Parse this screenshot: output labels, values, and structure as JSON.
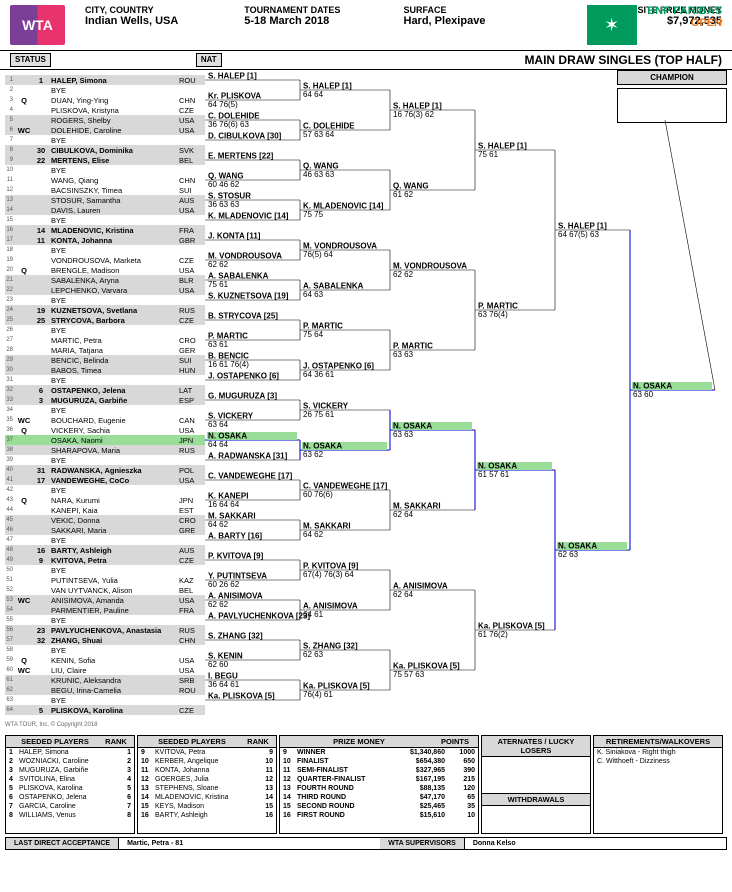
{
  "header": {
    "wta": "WTA",
    "city_label": "CITY, COUNTRY",
    "city_value": "Indian Wells, USA",
    "dates_label": "TOURNAMENT DATES",
    "dates_value": "5-18 March 2018",
    "surface_label": "SURFACE",
    "surface_value": "Hard, Plexipave",
    "prize_label": "ON-SITE PRIZE MONEY",
    "prize_value": "$7,972,535",
    "sponsor_name": "BNP PARIBAS",
    "sponsor_sub": "OPEN"
  },
  "titlebar": {
    "status": "STATUS",
    "nat": "NAT",
    "main": "MAIN DRAW SINGLES (TOP HALF)"
  },
  "champion_label": "CHAMPION",
  "r1": [
    {
      "n": 1,
      "st": "",
      "sd": "1",
      "name": "HALEP, Simona",
      "nat": "ROU",
      "gray": true
    },
    {
      "n": 2,
      "st": "",
      "sd": "",
      "name": "BYE",
      "nat": "",
      "gray": false
    },
    {
      "n": 3,
      "st": "Q",
      "sd": "",
      "name": "DUAN, Ying-Ying",
      "nat": "CHN",
      "gray": false
    },
    {
      "n": 4,
      "st": "",
      "sd": "",
      "name": "PLISKOVA, Kristyna",
      "nat": "CZE",
      "gray": false
    },
    {
      "n": 5,
      "st": "",
      "sd": "",
      "name": "ROGERS, Shelby",
      "nat": "USA",
      "gray": true
    },
    {
      "n": 6,
      "st": "WC",
      "sd": "",
      "name": "DOLEHIDE, Caroline",
      "nat": "USA",
      "gray": true
    },
    {
      "n": 7,
      "st": "",
      "sd": "",
      "name": "BYE",
      "nat": "",
      "gray": false
    },
    {
      "n": 8,
      "st": "",
      "sd": "30",
      "name": "CIBULKOVA, Dominika",
      "nat": "SVK",
      "gray": true
    },
    {
      "n": 9,
      "st": "",
      "sd": "22",
      "name": "MERTENS, Elise",
      "nat": "BEL",
      "gray": true
    },
    {
      "n": 10,
      "st": "",
      "sd": "",
      "name": "BYE",
      "nat": "",
      "gray": false
    },
    {
      "n": 11,
      "st": "",
      "sd": "",
      "name": "WANG, Qiang",
      "nat": "CHN",
      "gray": false
    },
    {
      "n": 12,
      "st": "",
      "sd": "",
      "name": "BACSINSZKY, Timea",
      "nat": "SUI",
      "gray": false
    },
    {
      "n": 13,
      "st": "",
      "sd": "",
      "name": "STOSUR, Samantha",
      "nat": "AUS",
      "gray": true
    },
    {
      "n": 14,
      "st": "",
      "sd": "",
      "name": "DAVIS, Lauren",
      "nat": "USA",
      "gray": true
    },
    {
      "n": 15,
      "st": "",
      "sd": "",
      "name": "BYE",
      "nat": "",
      "gray": false
    },
    {
      "n": 16,
      "st": "",
      "sd": "14",
      "name": "MLADENOVIC, Kristina",
      "nat": "FRA",
      "gray": true
    },
    {
      "n": 17,
      "st": "",
      "sd": "11",
      "name": "KONTA, Johanna",
      "nat": "GBR",
      "gray": true
    },
    {
      "n": 18,
      "st": "",
      "sd": "",
      "name": "BYE",
      "nat": "",
      "gray": false
    },
    {
      "n": 19,
      "st": "",
      "sd": "",
      "name": "VONDROUSOVA, Marketa",
      "nat": "CZE",
      "gray": false
    },
    {
      "n": 20,
      "st": "Q",
      "sd": "",
      "name": "BRENGLE, Madison",
      "nat": "USA",
      "gray": false
    },
    {
      "n": 21,
      "st": "",
      "sd": "",
      "name": "SABALENKA, Aryna",
      "nat": "BLR",
      "gray": true
    },
    {
      "n": 22,
      "st": "",
      "sd": "",
      "name": "LEPCHENKO, Varvara",
      "nat": "USA",
      "gray": true
    },
    {
      "n": 23,
      "st": "",
      "sd": "",
      "name": "BYE",
      "nat": "",
      "gray": false
    },
    {
      "n": 24,
      "st": "",
      "sd": "19",
      "name": "KUZNETSOVA, Svetlana",
      "nat": "RUS",
      "gray": true
    },
    {
      "n": 25,
      "st": "",
      "sd": "25",
      "name": "STRYCOVA, Barbora",
      "nat": "CZE",
      "gray": true
    },
    {
      "n": 26,
      "st": "",
      "sd": "",
      "name": "BYE",
      "nat": "",
      "gray": false
    },
    {
      "n": 27,
      "st": "",
      "sd": "",
      "name": "MARTIC, Petra",
      "nat": "CRO",
      "gray": false
    },
    {
      "n": 28,
      "st": "",
      "sd": "",
      "name": "MARIA, Tatjana",
      "nat": "GER",
      "gray": false
    },
    {
      "n": 29,
      "st": "",
      "sd": "",
      "name": "BENCIC, Belinda",
      "nat": "SUI",
      "gray": true
    },
    {
      "n": 30,
      "st": "",
      "sd": "",
      "name": "BABOS, Timea",
      "nat": "HUN",
      "gray": true
    },
    {
      "n": 31,
      "st": "",
      "sd": "",
      "name": "BYE",
      "nat": "",
      "gray": false
    },
    {
      "n": 32,
      "st": "",
      "sd": "6",
      "name": "OSTAPENKO, Jelena",
      "nat": "LAT",
      "gray": true
    },
    {
      "n": 33,
      "st": "",
      "sd": "3",
      "name": "MUGURUZA, Garbiñe",
      "nat": "ESP",
      "gray": true
    },
    {
      "n": 34,
      "st": "",
      "sd": "",
      "name": "BYE",
      "nat": "",
      "gray": false
    },
    {
      "n": 35,
      "st": "WC",
      "sd": "",
      "name": "BOUCHARD, Eugenie",
      "nat": "CAN",
      "gray": false
    },
    {
      "n": 36,
      "st": "Q",
      "sd": "",
      "name": "VICKERY, Sachia",
      "nat": "USA",
      "gray": false
    },
    {
      "n": 37,
      "st": "",
      "sd": "",
      "name": "OSAKA, Naomi",
      "nat": "JPN",
      "gray": false,
      "green": true
    },
    {
      "n": 38,
      "st": "",
      "sd": "",
      "name": "SHARAPOVA, Maria",
      "nat": "RUS",
      "gray": true
    },
    {
      "n": 39,
      "st": "",
      "sd": "",
      "name": "BYE",
      "nat": "",
      "gray": false
    },
    {
      "n": 40,
      "st": "",
      "sd": "31",
      "name": "RADWANSKA, Agnieszka",
      "nat": "POL",
      "gray": true
    },
    {
      "n": 41,
      "st": "",
      "sd": "17",
      "name": "VANDEWEGHE, CoCo",
      "nat": "USA",
      "gray": true
    },
    {
      "n": 42,
      "st": "",
      "sd": "",
      "name": "BYE",
      "nat": "",
      "gray": false
    },
    {
      "n": 43,
      "st": "Q",
      "sd": "",
      "name": "NARA, Kurumi",
      "nat": "JPN",
      "gray": false
    },
    {
      "n": 44,
      "st": "",
      "sd": "",
      "name": "KANEPI, Kaia",
      "nat": "EST",
      "gray": false
    },
    {
      "n": 45,
      "st": "",
      "sd": "",
      "name": "VEKIC, Donna",
      "nat": "CRO",
      "gray": true
    },
    {
      "n": 46,
      "st": "",
      "sd": "",
      "name": "SAKKARI, Maria",
      "nat": "GRE",
      "gray": true
    },
    {
      "n": 47,
      "st": "",
      "sd": "",
      "name": "BYE",
      "nat": "",
      "gray": false
    },
    {
      "n": 48,
      "st": "",
      "sd": "16",
      "name": "BARTY, Ashleigh",
      "nat": "AUS",
      "gray": true
    },
    {
      "n": 49,
      "st": "",
      "sd": "9",
      "name": "KVITOVA, Petra",
      "nat": "CZE",
      "gray": true
    },
    {
      "n": 50,
      "st": "",
      "sd": "",
      "name": "BYE",
      "nat": "",
      "gray": false
    },
    {
      "n": 51,
      "st": "",
      "sd": "",
      "name": "PUTINTSEVA, Yulia",
      "nat": "KAZ",
      "gray": false
    },
    {
      "n": 52,
      "st": "",
      "sd": "",
      "name": "VAN UYTVANCK, Alison",
      "nat": "BEL",
      "gray": false
    },
    {
      "n": 53,
      "st": "WC",
      "sd": "",
      "name": "ANISIMOVA, Amanda",
      "nat": "USA",
      "gray": true
    },
    {
      "n": 54,
      "st": "",
      "sd": "",
      "name": "PARMENTIER, Pauline",
      "nat": "FRA",
      "gray": true
    },
    {
      "n": 55,
      "st": "",
      "sd": "",
      "name": "BYE",
      "nat": "",
      "gray": false
    },
    {
      "n": 56,
      "st": "",
      "sd": "23",
      "name": "PAVLYUCHENKOVA, Anastasia",
      "nat": "RUS",
      "gray": true
    },
    {
      "n": 57,
      "st": "",
      "sd": "32",
      "name": "ZHANG, Shuai",
      "nat": "CHN",
      "gray": true
    },
    {
      "n": 58,
      "st": "",
      "sd": "",
      "name": "BYE",
      "nat": "",
      "gray": false
    },
    {
      "n": 59,
      "st": "Q",
      "sd": "",
      "name": "KENIN, Sofia",
      "nat": "USA",
      "gray": false
    },
    {
      "n": 60,
      "st": "WC",
      "sd": "",
      "name": "LIU, Claire",
      "nat": "USA",
      "gray": false
    },
    {
      "n": 61,
      "st": "",
      "sd": "",
      "name": "KRUNIC, Aleksandra",
      "nat": "SRB",
      "gray": true
    },
    {
      "n": 62,
      "st": "",
      "sd": "",
      "name": "BEGU, Irina-Camelia",
      "nat": "ROU",
      "gray": true
    },
    {
      "n": 63,
      "st": "",
      "sd": "",
      "name": "BYE",
      "nat": "",
      "gray": false
    },
    {
      "n": 64,
      "st": "",
      "sd": "5",
      "name": "PLISKOVA, Karolina",
      "nat": "CZE",
      "gray": true
    }
  ],
  "r2": [
    {
      "name": "S. HALEP [1]",
      "score": ""
    },
    {
      "name": "Kr. PLISKOVA",
      "score": "64 76(5)"
    },
    {
      "name": "C. DOLEHIDE",
      "score": "36 76(6) 63"
    },
    {
      "name": "D. CIBULKOVA [30]",
      "score": ""
    },
    {
      "name": "E. MERTENS [22]",
      "score": ""
    },
    {
      "name": "Q. WANG",
      "score": "60 46 62"
    },
    {
      "name": "S. STOSUR",
      "score": "36 63 63"
    },
    {
      "name": "K. MLADENOVIC [14]",
      "score": ""
    },
    {
      "name": "J. KONTA [11]",
      "score": ""
    },
    {
      "name": "M. VONDROUSOVA",
      "score": "62 62"
    },
    {
      "name": "A. SABALENKA",
      "score": "75 61"
    },
    {
      "name": "S. KUZNETSOVA [19]",
      "score": ""
    },
    {
      "name": "B. STRYCOVA [25]",
      "score": ""
    },
    {
      "name": "P. MARTIC",
      "score": "63 61"
    },
    {
      "name": "B. BENCIC",
      "score": "16 61 76(4)"
    },
    {
      "name": "J. OSTAPENKO [6]",
      "score": ""
    },
    {
      "name": "G. MUGURUZA [3]",
      "score": ""
    },
    {
      "name": "S. VICKERY",
      "score": "63 64"
    },
    {
      "name": "N. OSAKA",
      "score": "64 64",
      "green": true
    },
    {
      "name": "A. RADWANSKA [31]",
      "score": ""
    },
    {
      "name": "C. VANDEWEGHE [17]",
      "score": ""
    },
    {
      "name": "K. KANEPI",
      "score": "16 64 64"
    },
    {
      "name": "M. SAKKARI",
      "score": "64 62"
    },
    {
      "name": "A. BARTY [16]",
      "score": ""
    },
    {
      "name": "P. KVITOVA [9]",
      "score": ""
    },
    {
      "name": "Y. PUTINTSEVA",
      "score": "60 26 62"
    },
    {
      "name": "A. ANISIMOVA",
      "score": "62 62"
    },
    {
      "name": "A. PAVLYUCHENKOVA [23]",
      "score": ""
    },
    {
      "name": "S. ZHANG [32]",
      "score": ""
    },
    {
      "name": "S. KENIN",
      "score": "62 60"
    },
    {
      "name": "I. BEGU",
      "score": "36 64 61"
    },
    {
      "name": "Ka. PLISKOVA [5]",
      "score": ""
    }
  ],
  "r3": [
    {
      "name": "S. HALEP [1]",
      "score": "64 64"
    },
    {
      "name": "C. DOLEHIDE",
      "score": "57 63 64"
    },
    {
      "name": "Q. WANG",
      "score": "46 63 63"
    },
    {
      "name": "K. MLADENOVIC [14]",
      "score": "75 75"
    },
    {
      "name": "M. VONDROUSOVA",
      "score": "76(5) 64"
    },
    {
      "name": "A. SABALENKA",
      "score": "64 63"
    },
    {
      "name": "P. MARTIC",
      "score": "75 64"
    },
    {
      "name": "J. OSTAPENKO [6]",
      "score": "64 36 61"
    },
    {
      "name": "S. VICKERY",
      "score": "26 75 61"
    },
    {
      "name": "N. OSAKA",
      "score": "63 62",
      "green": true
    },
    {
      "name": "C. VANDEWEGHE [17]",
      "score": "60 76(6)"
    },
    {
      "name": "M. SAKKARI",
      "score": "64 62"
    },
    {
      "name": "P. KVITOVA [9]",
      "score": "67(4) 76(3) 64"
    },
    {
      "name": "A. ANISIMOVA",
      "score": "64 61"
    },
    {
      "name": "S. ZHANG [32]",
      "score": "62 63"
    },
    {
      "name": "Ka. PLISKOVA [5]",
      "score": "76(4) 61"
    }
  ],
  "r4": [
    {
      "name": "S. HALEP [1]",
      "score": "16 76(3) 62"
    },
    {
      "name": "Q. WANG",
      "score": "61 62"
    },
    {
      "name": "M. VONDROUSOVA",
      "score": "62 62"
    },
    {
      "name": "P. MARTIC",
      "score": "63 63"
    },
    {
      "name": "N. OSAKA",
      "score": "63 63",
      "green": true
    },
    {
      "name": "M. SAKKARI",
      "score": "62 64"
    },
    {
      "name": "A. ANISIMOVA",
      "score": "62 64"
    },
    {
      "name": "Ka. PLISKOVA [5]",
      "score": "75 57 63"
    }
  ],
  "qf": [
    {
      "name": "S. HALEP [1]",
      "score": "75 61"
    },
    {
      "name": "P. MARTIC",
      "score": "63 76(4)"
    },
    {
      "name": "N. OSAKA",
      "score": "61 57 61",
      "green": true
    },
    {
      "name": "Ka. PLISKOVA [5]",
      "score": "61 76(2)"
    }
  ],
  "sf": [
    {
      "name": "S. HALEP [1]",
      "score": "64 67(5) 63"
    },
    {
      "name": "N. OSAKA",
      "score": "62 63",
      "green": true
    }
  ],
  "final": {
    "name": "N. OSAKA",
    "score": "63 60",
    "green": true
  },
  "colors": {
    "gray": "#d8d8d8",
    "green_fill": "#99dd99",
    "green_line": "#0000ff",
    "blue_line": "#3333dd",
    "black": "#000"
  },
  "seeded_left": {
    "header": "SEEDED PLAYERS",
    "rank_header": "RANK",
    "rows": [
      {
        "n": "1",
        "name": "HALEP, Simona",
        "r": "1"
      },
      {
        "n": "2",
        "name": "WOZNIACKI, Caroline",
        "r": "2"
      },
      {
        "n": "3",
        "name": "MUGURUZA, Garbiñe",
        "r": "3"
      },
      {
        "n": "4",
        "name": "SVITOLINA, Elina",
        "r": "4"
      },
      {
        "n": "5",
        "name": "PLISKOVA, Karolina",
        "r": "5"
      },
      {
        "n": "6",
        "name": "OSTAPENKO, Jelena",
        "r": "6"
      },
      {
        "n": "7",
        "name": "GARCIA, Caroline",
        "r": "7"
      },
      {
        "n": "8",
        "name": "WILLIAMS, Venus",
        "r": "8"
      }
    ]
  },
  "seeded_right": {
    "header": "SEEDED PLAYERS",
    "rank_header": "RANK",
    "rows": [
      {
        "n": "9",
        "name": "KVITOVA, Petra",
        "r": "9"
      },
      {
        "n": "10",
        "name": "KERBER, Angelique",
        "r": "10"
      },
      {
        "n": "11",
        "name": "KONTA, Johanna",
        "r": "11"
      },
      {
        "n": "12",
        "name": "GOERGES, Julia",
        "r": "12"
      },
      {
        "n": "13",
        "name": "STEPHENS, Sloane",
        "r": "13"
      },
      {
        "n": "14",
        "name": "MLADENOVIC, Kristina",
        "r": "14"
      },
      {
        "n": "15",
        "name": "KEYS, Madison",
        "r": "15"
      },
      {
        "n": "16",
        "name": "BARTY, Ashleigh",
        "r": "16"
      }
    ]
  },
  "prize_money": {
    "header": "PRIZE MONEY",
    "points_header": "POINTS",
    "rows": [
      {
        "n": "9",
        "round": "WINNER",
        "prize": "$1,340,860",
        "pts": "1000"
      },
      {
        "n": "10",
        "round": "FINALIST",
        "prize": "$654,380",
        "pts": "650"
      },
      {
        "n": "11",
        "round": "SEMI-FINALIST",
        "prize": "$327,965",
        "pts": "390"
      },
      {
        "n": "12",
        "round": "QUARTER-FINALIST",
        "prize": "$167,195",
        "pts": "215"
      },
      {
        "n": "13",
        "round": "FOURTH ROUND",
        "prize": "$88,135",
        "pts": "120"
      },
      {
        "n": "14",
        "round": "THIRD ROUND",
        "prize": "$47,170",
        "pts": "65"
      },
      {
        "n": "15",
        "round": "SECOND ROUND",
        "prize": "$25,465",
        "pts": "35"
      },
      {
        "n": "16",
        "round": "FIRST ROUND",
        "prize": "$15,610",
        "pts": "10"
      }
    ]
  },
  "alternates": {
    "header": "ATERNATES / LUCKY LOSERS"
  },
  "retirements": {
    "header": "RETIREMENTS/WALKOVERS",
    "rows": [
      "K. Siniakova - Right thigh",
      "C. Witthoeft - Dizziness"
    ]
  },
  "withdrawals": {
    "header": "WITHDRAWALS"
  },
  "lda": {
    "label": "LAST DIRECT ACCEPTANCE",
    "value": "Martic, Petra - 81"
  },
  "supervisors": {
    "label": "WTA SUPERVISORS",
    "value": "Donna Kelso"
  },
  "copyright": "WTA TOUR, Inc. © Copyright 2018"
}
